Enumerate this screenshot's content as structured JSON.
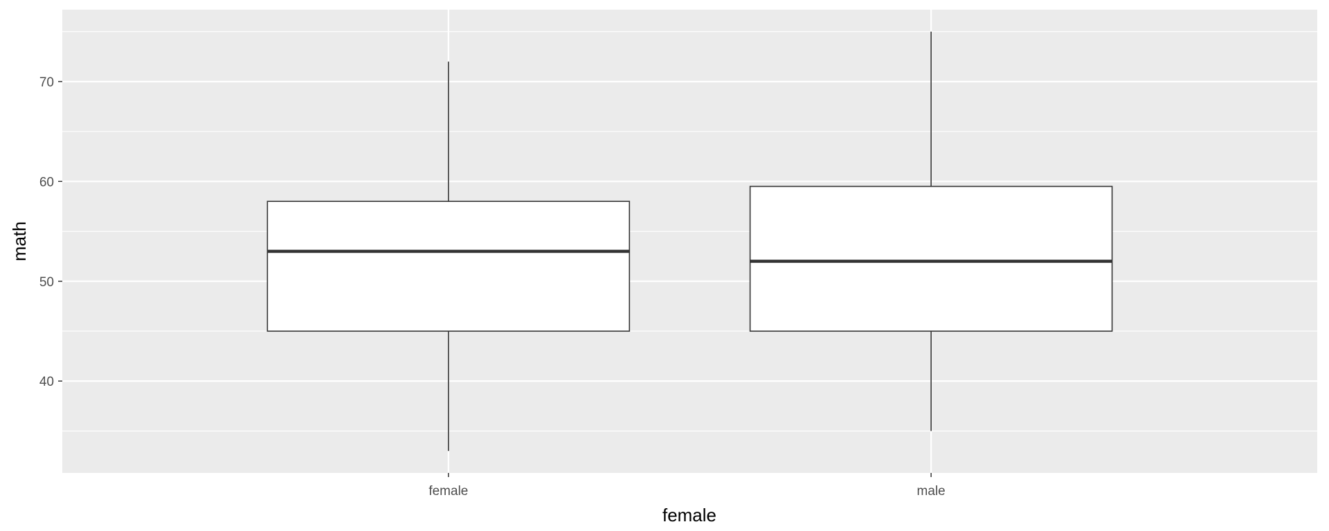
{
  "chart_data": {
    "type": "boxplot",
    "title": "",
    "xlabel": "female",
    "ylabel": "math",
    "ylim": [
      30.8,
      77.2
    ],
    "y_ticks": [
      40,
      50,
      60,
      70
    ],
    "y_minor_ticks": [
      35,
      45,
      55,
      65,
      75
    ],
    "grid": true,
    "categories": [
      "female",
      "male"
    ],
    "boxes": [
      {
        "category": "female",
        "whisker_low": 33,
        "q1": 45,
        "median": 53,
        "q3": 58,
        "whisker_high": 72
      },
      {
        "category": "male",
        "whisker_low": 35,
        "q1": 45,
        "median": 52,
        "q3": 59.5,
        "whisker_high": 75
      }
    ],
    "colors": {
      "panel_background": "#ebebeb",
      "grid_line": "#ffffff",
      "box_fill": "#ffffff",
      "box_outline": "#333333",
      "median_line": "#333333",
      "whisker": "#333333",
      "tick_label": "#4d4d4d",
      "axis_title": "#000000"
    }
  }
}
